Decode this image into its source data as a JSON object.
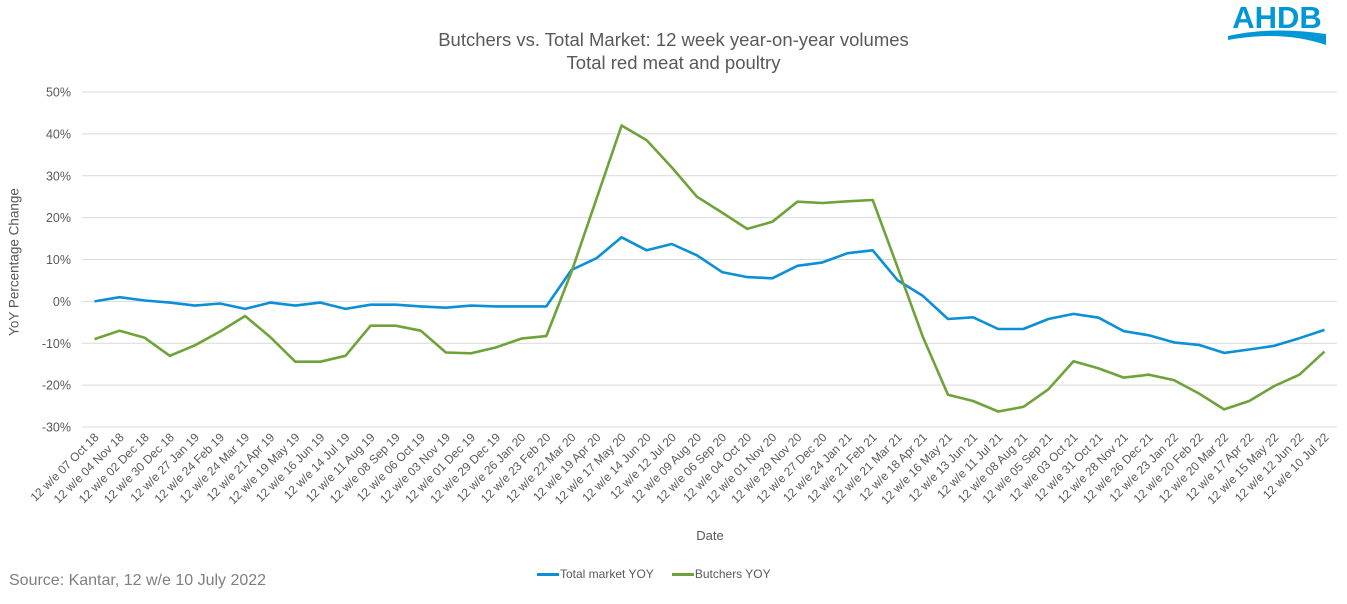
{
  "header": {
    "title_line1": "Butchers vs. Total Market: 12 week year-on-year volumes",
    "title_line2": "Total red meat and poultry",
    "logo_text": "AHDB",
    "logo_color": "#0097d7"
  },
  "footer": {
    "source": "Source: Kantar, 12 w/e 10 July 2022"
  },
  "colors": {
    "total_market": "#0b8fd6",
    "butchers": "#6ea33a",
    "gridline": "#d9d9d9",
    "text": "#595959"
  },
  "legend": [
    {
      "label": "Total market YOY",
      "color": "#0b8fd6"
    },
    {
      "label": "Butchers YOY",
      "color": "#6ea33a"
    }
  ],
  "chart_data": {
    "type": "line",
    "title": "Butchers vs. Total Market: 12 week year-on-year volumes",
    "subtitle": "Total red meat and poultry",
    "xlabel": "Date",
    "ylabel": "YoY Percentage Change",
    "ylim": [
      -30,
      50
    ],
    "yticks": [
      "50%",
      "40%",
      "30%",
      "20%",
      "10%",
      "0%",
      "-10%",
      "-20%",
      "-30%"
    ],
    "ytick_values": [
      50,
      40,
      30,
      20,
      10,
      0,
      -10,
      -20,
      -30
    ],
    "grid": true,
    "legend_position": "bottom",
    "categories": [
      "12 w/e 07 Oct 18",
      "12 w/e 04 Nov 18",
      "12 w/e 02 Dec 18",
      "12 w/e 30 Dec 18",
      "12 w/e 27 Jan 19",
      "12 w/e 24 Feb 19",
      "12 w/e 24 Mar 19",
      "12 w/e 21 Apr 19",
      "12 w/e 19 May 19",
      "12 w/e 16 Jun 19",
      "12 w/e 14 Jul 19",
      "12 w/e 11 Aug 19",
      "12 w/e 08 Sep 19",
      "12 w/e 06 Oct 19",
      "12 w/e 03 Nov 19",
      "12 w/e 01 Dec 19",
      "12 w/e 29 Dec 19",
      "12 w/e 26 Jan 20",
      "12 w/e 23 Feb 20",
      "12 w/e 22 Mar 20",
      "12 w/e 19 Apr 20",
      "12 w/e 17 May 20",
      "12 w/e 14 Jun 20",
      "12 w/e 12 Jul 20",
      "12 w/e 09 Aug 20",
      "12 w/e 06 Sep 20",
      "12 w/e 04 Oct 20",
      "12 w/e 01 Nov 20",
      "12 w/e 29 Nov 20",
      "12 w/e 27 Dec 20",
      "12 w/e 24 Jan 21",
      "12 w/e 21 Feb 21",
      "12 w/e 21 Mar 21",
      "12 w/e 18 Apr 21",
      "12 w/e 16 May 21",
      "12 w/e 13 Jun 21",
      "12 w/e 11 Jul 21",
      "12 w/e 08 Aug 21",
      "12 w/e 05 Sep 21",
      "12 w/e 03 Oct 21",
      "12 w/e 31 Oct 21",
      "12 w/e 28 Nov 21",
      "12 w/e 26 Dec 21",
      "12 w/e 23 Jan 22",
      "12 w/e 20 Feb 22",
      "12 w/e 20 Mar 22",
      "12 w/e 17 Apr 22",
      "12 w/e 15 May 22",
      "12 w/e 12 Jun 22",
      "12 w/e 10 Jul 22"
    ],
    "series": [
      {
        "name": "Total market YOY",
        "color": "#0b8fd6",
        "values": [
          0.0,
          1.0,
          0.2,
          -0.3,
          -1.0,
          -0.5,
          -1.8,
          -0.3,
          -1.0,
          -0.3,
          -1.8,
          -0.8,
          -0.8,
          -1.2,
          -1.5,
          -1.0,
          -1.2,
          -1.2,
          -1.2,
          7.5,
          10.3,
          15.3,
          12.2,
          13.7,
          11.0,
          7.0,
          5.8,
          5.5,
          8.5,
          9.3,
          11.5,
          12.2,
          5.0,
          1.3,
          -4.2,
          -3.8,
          -6.6,
          -6.6,
          -4.2,
          -3.0,
          -3.9,
          -7.1,
          -8.1,
          -9.8,
          -10.4,
          -12.3,
          -11.5,
          -10.6,
          -8.8,
          -6.8
        ]
      },
      {
        "name": "Butchers YOY",
        "color": "#6ea33a",
        "values": [
          -9.0,
          -7.0,
          -8.7,
          -13.0,
          -10.5,
          -7.2,
          -3.5,
          -8.5,
          -14.4,
          -14.4,
          -13.0,
          -5.8,
          -5.8,
          -7.0,
          -12.2,
          -12.4,
          -11.0,
          -8.9,
          -8.3,
          7.0,
          24.5,
          42.0,
          38.5,
          32.0,
          25.0,
          21.2,
          17.3,
          19.0,
          23.8,
          23.5,
          23.9,
          24.2,
          8.0,
          -8.5,
          -22.3,
          -23.8,
          -26.3,
          -25.2,
          -21.0,
          -14.3,
          -16.0,
          -18.2,
          -17.5,
          -18.8,
          -22.0,
          -25.8,
          -23.8,
          -20.2,
          -17.5,
          -12.0
        ]
      }
    ]
  }
}
